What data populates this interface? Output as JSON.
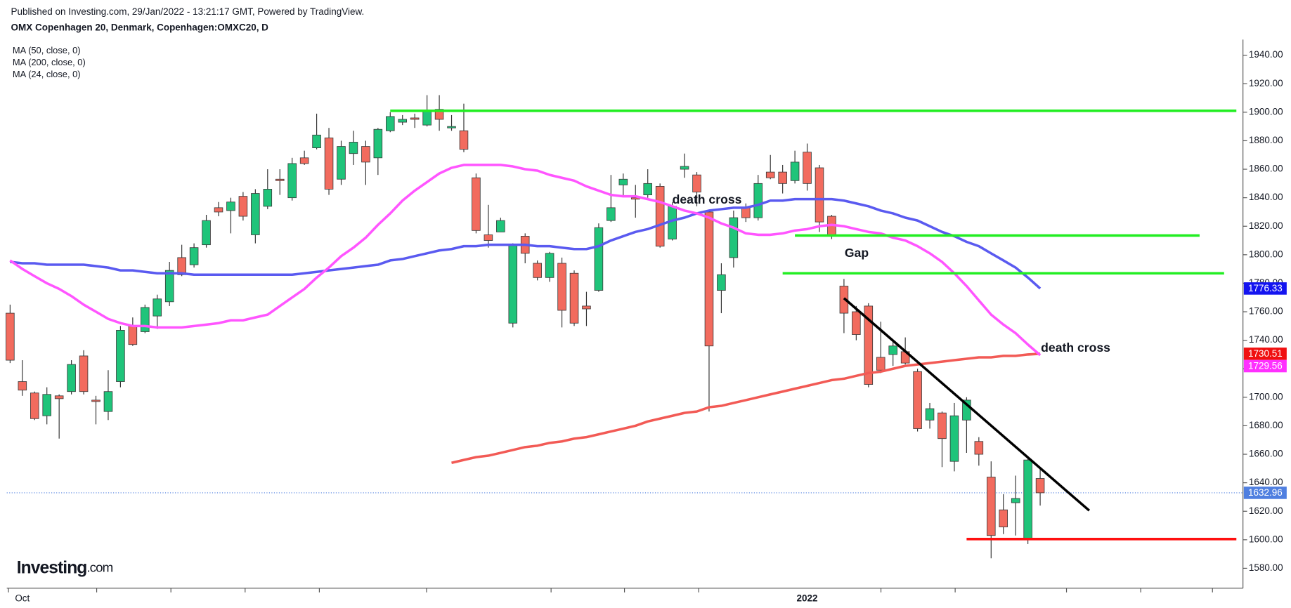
{
  "chart_data": {
    "type": "candlestick",
    "source": "Published on Investing.com, 29/Jan/2022 - 13:21:17 GMT, Powered by TradingView.",
    "title": "OMX Copenhagen 20, Denmark, Copenhagen:OMXC20, D",
    "brand": "Investing",
    "brand_suffix": ".com",
    "categories": [
      null,
      "Oct",
      null,
      null,
      null,
      null,
      null,
      null,
      null,
      null,
      null,
      null,
      null,
      null,
      null,
      null,
      null,
      null,
      null,
      null,
      null,
      null,
      null,
      null,
      null,
      null,
      null,
      null,
      null,
      null,
      null,
      null,
      null,
      null,
      null,
      null,
      null,
      null,
      null,
      null,
      null,
      null,
      null,
      null,
      null,
      null,
      null,
      null,
      null,
      null,
      null,
      null,
      null,
      null,
      null,
      null,
      null,
      null,
      null,
      null,
      null,
      null,
      null,
      null,
      null,
      "2022",
      null,
      null,
      null,
      null,
      null,
      null,
      null,
      null,
      null,
      null,
      null,
      null,
      null,
      null,
      null,
      null,
      null,
      null,
      null
    ],
    "open": [
      1759,
      1711,
      1703,
      1687,
      1701,
      1704,
      1729,
      1698,
      1690,
      1711,
      1750,
      1746,
      1757,
      1767,
      1798,
      1793,
      1807,
      1833,
      1831,
      1841,
      1814,
      1834,
      1853,
      1840,
      1868,
      1875,
      1882,
      1853,
      1871,
      1876,
      1868,
      1887,
      1893,
      1896,
      1891,
      1902,
      1889,
      1887,
      1854,
      1814,
      1816,
      1752,
      1813,
      1794,
      1784,
      1794,
      1787,
      1764,
      1775,
      1824,
      1849,
      1840,
      1842,
      1848,
      1811,
      1860,
      1856,
      1830,
      1775,
      1798,
      1833,
      1826,
      1858,
      1858,
      1852,
      1872,
      1861,
      1827,
      1778,
      1760,
      1764,
      1728,
      1730,
      1732,
      1718,
      1684,
      1689,
      1655,
      1684,
      1669,
      1644,
      1621,
      1626,
      1601,
      1643
    ],
    "high": [
      1765,
      1726,
      1704,
      1707,
      1702,
      1726,
      1733,
      1701,
      1719,
      1750,
      1756,
      1765,
      1772,
      1795,
      1807,
      1808,
      1828,
      1837,
      1840,
      1844,
      1846,
      1860,
      1860,
      1868,
      1873,
      1899,
      1889,
      1880,
      1887,
      1880,
      1889,
      1900,
      1898,
      1899,
      1912,
      1912,
      1898,
      1906,
      1857,
      1835,
      1826,
      1808,
      1815,
      1796,
      1802,
      1798,
      1789,
      1774,
      1822,
      1856,
      1857,
      1849,
      1860,
      1850,
      1837,
      1871,
      1858,
      1831,
      1794,
      1831,
      1836,
      1856,
      1870,
      1863,
      1873,
      1878,
      1863,
      1828,
      1783,
      1764,
      1766,
      1753,
      1739,
      1742,
      1720,
      1696,
      1690,
      1696,
      1700,
      1672,
      1655,
      1632,
      1645,
      1658,
      1650
    ],
    "low": [
      1724,
      1701,
      1684,
      1681,
      1671,
      1702,
      1702,
      1681,
      1684,
      1707,
      1736,
      1745,
      1748,
      1764,
      1785,
      1791,
      1805,
      1827,
      1815,
      1824,
      1808,
      1832,
      1842,
      1838,
      1863,
      1874,
      1842,
      1849,
      1863,
      1849,
      1856,
      1886,
      1891,
      1889,
      1890,
      1887,
      1887,
      1872,
      1815,
      1805,
      1816,
      1749,
      1794,
      1782,
      1781,
      1749,
      1750,
      1750,
      1774,
      1823,
      1841,
      1826,
      1840,
      1805,
      1810,
      1854,
      1834,
      1690,
      1759,
      1791,
      1823,
      1824,
      1853,
      1843,
      1850,
      1845,
      1816,
      1811,
      1745,
      1740,
      1707,
      1717,
      1722,
      1723,
      1676,
      1678,
      1651,
      1648,
      1661,
      1652,
      1587,
      1604,
      1603,
      1597,
      1624
    ],
    "close": [
      1726,
      1705,
      1685,
      1702,
      1699,
      1723,
      1704,
      1697,
      1704,
      1747,
      1737,
      1763,
      1769,
      1789,
      1786,
      1805,
      1824,
      1830,
      1837,
      1827,
      1843,
      1846,
      1852,
      1864,
      1864,
      1884,
      1846,
      1876,
      1879,
      1865,
      1888,
      1897,
      1895,
      1895,
      1901,
      1895,
      1890,
      1874,
      1817,
      1810,
      1824,
      1807,
      1801,
      1784,
      1801,
      1761,
      1752,
      1762,
      1819,
      1833,
      1853,
      1839,
      1850,
      1806,
      1834,
      1862,
      1844,
      1736,
      1786,
      1826,
      1826,
      1850,
      1854,
      1850,
      1865,
      1850,
      1823,
      1813,
      1759,
      1744,
      1709,
      1719,
      1736,
      1724,
      1678,
      1692,
      1671,
      1687,
      1698,
      1660,
      1603,
      1609,
      1629,
      1656,
      1632.96
    ],
    "up_color": "#1fc47a",
    "down_color": "#f26b5e",
    "last_price_color": "#4f7fe0",
    "series": [
      {
        "name": "MA (50, close, 0)",
        "color": "#5a5af0",
        "values": [
          1795,
          1794,
          1794,
          1793,
          1793,
          1793,
          1793,
          1792,
          1791,
          1789,
          1789,
          1788,
          1787,
          1787,
          1787,
          1786,
          1786,
          1786,
          1786,
          1786,
          1786,
          1786,
          1786,
          1786,
          1787,
          1788,
          1789,
          1790,
          1791,
          1792,
          1793,
          1796,
          1797,
          1799,
          1801,
          1803,
          1804,
          1806,
          1806,
          1807,
          1807,
          1807,
          1807,
          1806,
          1806,
          1805,
          1804,
          1804,
          1806,
          1810,
          1813,
          1816,
          1818,
          1821,
          1824,
          1826,
          1829,
          1831,
          1832,
          1833,
          1833,
          1835,
          1838,
          1838,
          1839,
          1839,
          1839,
          1839,
          1838,
          1836,
          1834,
          1831,
          1829,
          1826,
          1824,
          1820,
          1816,
          1813,
          1809,
          1806,
          1801,
          1796,
          1791,
          1784,
          1776.33
        ],
        "label_color": "#1414f0"
      },
      {
        "name": "MA (200, close, 0)",
        "color": "#f25a55",
        "values": [
          null,
          null,
          null,
          null,
          null,
          null,
          null,
          null,
          null,
          null,
          null,
          null,
          null,
          null,
          null,
          null,
          null,
          null,
          null,
          null,
          null,
          null,
          null,
          null,
          null,
          null,
          null,
          null,
          null,
          null,
          null,
          null,
          null,
          null,
          null,
          null,
          1654,
          1656,
          1658,
          1659,
          1661,
          1663,
          1665,
          1666,
          1668,
          1669,
          1671,
          1672,
          1674,
          1676,
          1678,
          1680,
          1683,
          1685,
          1687,
          1689,
          1690,
          1693,
          1694,
          1696,
          1698,
          1700,
          1702,
          1704,
          1706,
          1708,
          1710,
          1712,
          1713,
          1715,
          1717,
          1718,
          1720,
          1722,
          1723,
          1724,
          1725,
          1726,
          1727,
          1728,
          1728,
          1729,
          1729,
          1730,
          1730.51
        ],
        "label_color": "#f01010"
      },
      {
        "name": "MA (24, close, 0)",
        "color": "#ff55ff",
        "values": [
          1796,
          1790,
          1785,
          1780,
          1776,
          1771,
          1765,
          1760,
          1755,
          1752,
          1750,
          1750,
          1749,
          1749,
          1749,
          1750,
          1751,
          1752,
          1754,
          1754,
          1756,
          1758,
          1764,
          1770,
          1776,
          1784,
          1791,
          1799,
          1805,
          1812,
          1821,
          1829,
          1838,
          1845,
          1851,
          1857,
          1861,
          1863,
          1863,
          1863,
          1863,
          1862,
          1860,
          1859,
          1856,
          1854,
          1852,
          1848,
          1845,
          1842,
          1841,
          1841,
          1839,
          1837,
          1834,
          1831,
          1829,
          1826,
          1822,
          1819,
          1815,
          1814,
          1814,
          1815,
          1817,
          1818,
          1820,
          1821,
          1820,
          1818,
          1816,
          1815,
          1812,
          1810,
          1806,
          1801,
          1795,
          1787,
          1778,
          1768,
          1758,
          1751,
          1745,
          1737,
          1729.56
        ],
        "label_color": "#ff30ff"
      }
    ],
    "levels": [
      {
        "value": 1901,
        "from": 31,
        "to": 100,
        "color": "#22ee22"
      },
      {
        "value": 1813.5,
        "from": 64,
        "to": 97,
        "color": "#22ee22"
      },
      {
        "value": 1787,
        "from": 63,
        "to": 99,
        "color": "#22ee22"
      },
      {
        "value": 1600.5,
        "from": 78,
        "to": 100,
        "color": "#ff1010"
      }
    ],
    "trendline": {
      "x": [
        68,
        88
      ],
      "y": [
        1769.5,
        1620.5
      ],
      "color": "#000000"
    },
    "annotations": [
      "death cross",
      "Gap",
      "death cross"
    ],
    "ylim": [
      1566,
      1951
    ],
    "yticks": [
      {
        "value": 1580,
        "label": "1580.00"
      },
      {
        "value": 1600,
        "label": "1600.00"
      },
      {
        "value": 1620,
        "label": "1620.00"
      },
      {
        "value": 1640,
        "label": "1640.00"
      },
      {
        "value": 1660,
        "label": "1660.00"
      },
      {
        "value": 1680,
        "label": "1680.00"
      },
      {
        "value": 1700,
        "label": "1700.00"
      },
      {
        "value": 1720,
        "label": "1720.00"
      },
      {
        "value": 1740,
        "label": "1740.00"
      },
      {
        "value": 1760,
        "label": "1760.00"
      },
      {
        "value": 1780,
        "label": "1780.00"
      },
      {
        "value": 1800,
        "label": "1800.00"
      },
      {
        "value": 1820,
        "label": "1820.00"
      },
      {
        "value": 1840,
        "label": "1840.00"
      },
      {
        "value": 1860,
        "label": "1860.00"
      },
      {
        "value": 1880,
        "label": "1880.00"
      },
      {
        "value": 1900,
        "label": "1900.00"
      },
      {
        "value": 1920,
        "label": "1920.00"
      },
      {
        "value": 1940,
        "label": "1940.00"
      }
    ]
  }
}
